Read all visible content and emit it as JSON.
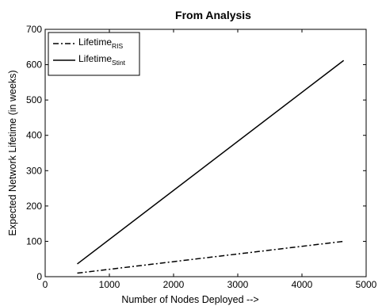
{
  "chart_data": {
    "type": "line",
    "title": "From Analysis",
    "xlabel": "Number of Nodes Deployed -->",
    "ylabel": "Expected Network Lifetime (in weeks)",
    "xlim": [
      0,
      5000
    ],
    "ylim": [
      0,
      700
    ],
    "xticks": [
      0,
      1000,
      2000,
      3000,
      4000,
      5000
    ],
    "yticks": [
      0,
      100,
      200,
      300,
      400,
      500,
      600,
      700
    ],
    "grid": false,
    "legend_position": "top-left",
    "series": [
      {
        "name": "Lifetime",
        "name_subscript": "RIS",
        "line_style": "dash-dot",
        "color": "#000000",
        "x": [
          500,
          4650
        ],
        "y": [
          10,
          100
        ]
      },
      {
        "name": "Lifetime",
        "name_subscript": "Stint",
        "line_style": "solid",
        "color": "#000000",
        "x": [
          500,
          4650
        ],
        "y": [
          36,
          612
        ]
      }
    ]
  }
}
